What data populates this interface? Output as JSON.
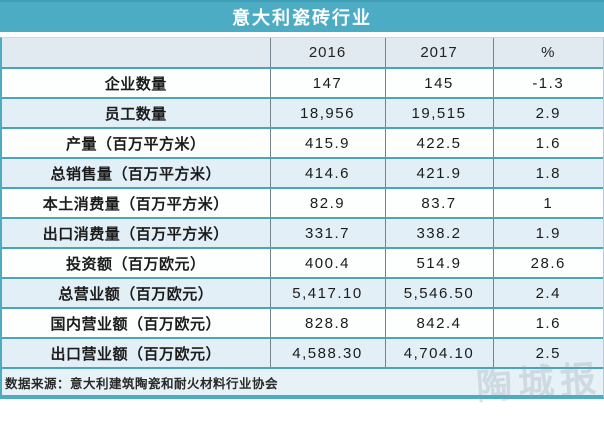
{
  "chart_data": {
    "type": "table",
    "title": "意大利瓷砖行业",
    "columns": [
      "",
      "2016",
      "2017",
      "%"
    ],
    "rows": [
      {
        "label": "企业数量",
        "v2016": "147",
        "v2017": "145",
        "pct": "-1.3"
      },
      {
        "label": "员工数量",
        "v2016": "18,956",
        "v2017": "19,515",
        "pct": "2.9"
      },
      {
        "label": "产量（百万平方米）",
        "v2016": "415.9",
        "v2017": "422.5",
        "pct": "1.6"
      },
      {
        "label": "总销售量（百万平方米）",
        "v2016": "414.6",
        "v2017": "421.9",
        "pct": "1.8"
      },
      {
        "label": "本土消费量（百万平方米）",
        "v2016": "82.9",
        "v2017": "83.7",
        "pct": "1"
      },
      {
        "label": "出口消费量（百万平方米）",
        "v2016": "331.7",
        "v2017": "338.2",
        "pct": "1.9"
      },
      {
        "label": "投资额（百万欧元）",
        "v2016": "400.4",
        "v2017": "514.9",
        "pct": "28.6"
      },
      {
        "label": "总营业额（百万欧元）",
        "v2016": "5,417.10",
        "v2017": "5,546.50",
        "pct": "2.4"
      },
      {
        "label": "国内营业额（百万欧元）",
        "v2016": "828.8",
        "v2017": "842.4",
        "pct": "1.6"
      },
      {
        "label": "出口营业额（百万欧元）",
        "v2016": "4,588.30",
        "v2017": "4,704.10",
        "pct": "2.5"
      }
    ],
    "source": "数据来源：意大利建筑陶瓷和耐火材料行业协会",
    "layout": {
      "grid": true,
      "alternating_rows": true
    }
  },
  "watermark": "陶城报",
  "colors": {
    "title_bar": "#4BACC4",
    "header_row_bg": "#E2EAF1",
    "alt_row_bg": "#E3EFF6",
    "white_row_bg": "#FDFEFE",
    "footer_bg": "#E7F2F7",
    "horizontal_border": "#4BA4BA",
    "vertical_border": "#74838D",
    "text": "#1B1B1B",
    "title_text": "#FFFFFF"
  }
}
